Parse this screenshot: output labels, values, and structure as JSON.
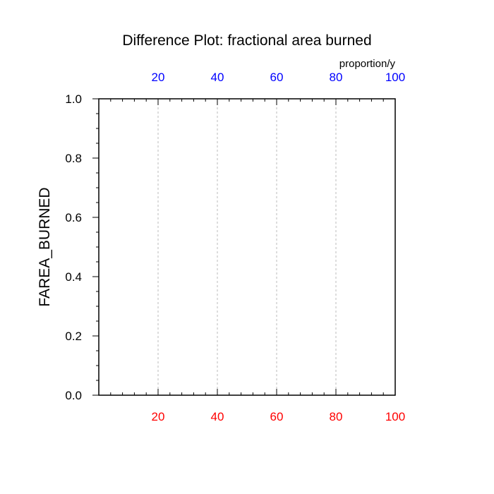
{
  "chart_data": {
    "type": "line",
    "title": "Difference Plot: fractional area burned",
    "ylabel": "FAREA_BURNED",
    "top_axis_units": "proportion/y",
    "xlim": [
      0,
      100
    ],
    "ylim": [
      0.0,
      1.0
    ],
    "x_ticks": [
      "20",
      "40",
      "60",
      "80",
      "100"
    ],
    "y_ticks": [
      "0.0",
      "0.2",
      "0.4",
      "0.6",
      "0.8",
      "1.0"
    ],
    "grid": "vertical dashed at x major ticks",
    "series": [],
    "colors": {
      "bottom_tick_labels": "#ff0000",
      "top_tick_labels": "#0000ff",
      "axes": "#000000",
      "grid": "#bbbbbb"
    }
  }
}
